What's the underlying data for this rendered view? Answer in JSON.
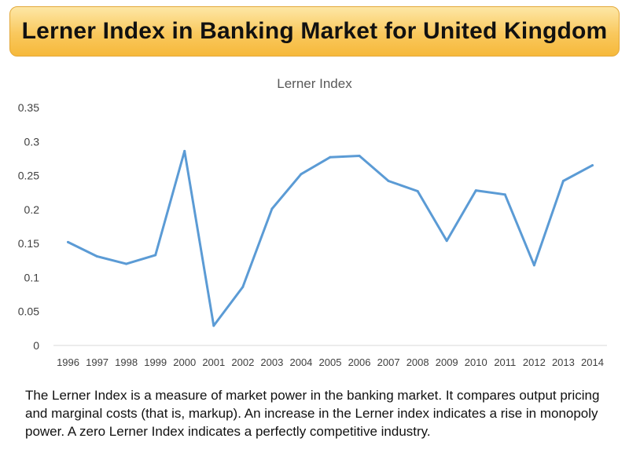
{
  "banner": {
    "title": "Lerner Index in Banking Market for United Kingdom"
  },
  "chart_data": {
    "type": "line",
    "title": "Lerner Index",
    "x": [
      "1996",
      "1997",
      "1998",
      "1999",
      "2000",
      "2001",
      "2002",
      "2003",
      "2004",
      "2005",
      "2006",
      "2007",
      "2008",
      "2009",
      "2010",
      "2011",
      "2012",
      "2013",
      "2014"
    ],
    "series": [
      {
        "values": [
          0.152,
          0.131,
          0.12,
          0.133,
          0.286,
          0.029,
          0.086,
          0.201,
          0.252,
          0.277,
          0.279,
          0.242,
          0.227,
          0.154,
          0.228,
          0.222,
          0.118,
          0.242,
          0.265
        ]
      }
    ],
    "yticks": [
      "0",
      "0.05",
      "0.1",
      "0.15",
      "0.2",
      "0.25",
      "0.3",
      "0.35"
    ],
    "ylim": [
      0,
      0.35
    ],
    "grid": false,
    "line_color": "#5b9bd5"
  },
  "description": "The Lerner Index is a measure of market power in the banking market. It compares output pricing and marginal costs (that is, markup). An increase in the Lerner index indicates a rise in monopoly power. A zero Lerner Index indicates a perfectly competitive industry."
}
